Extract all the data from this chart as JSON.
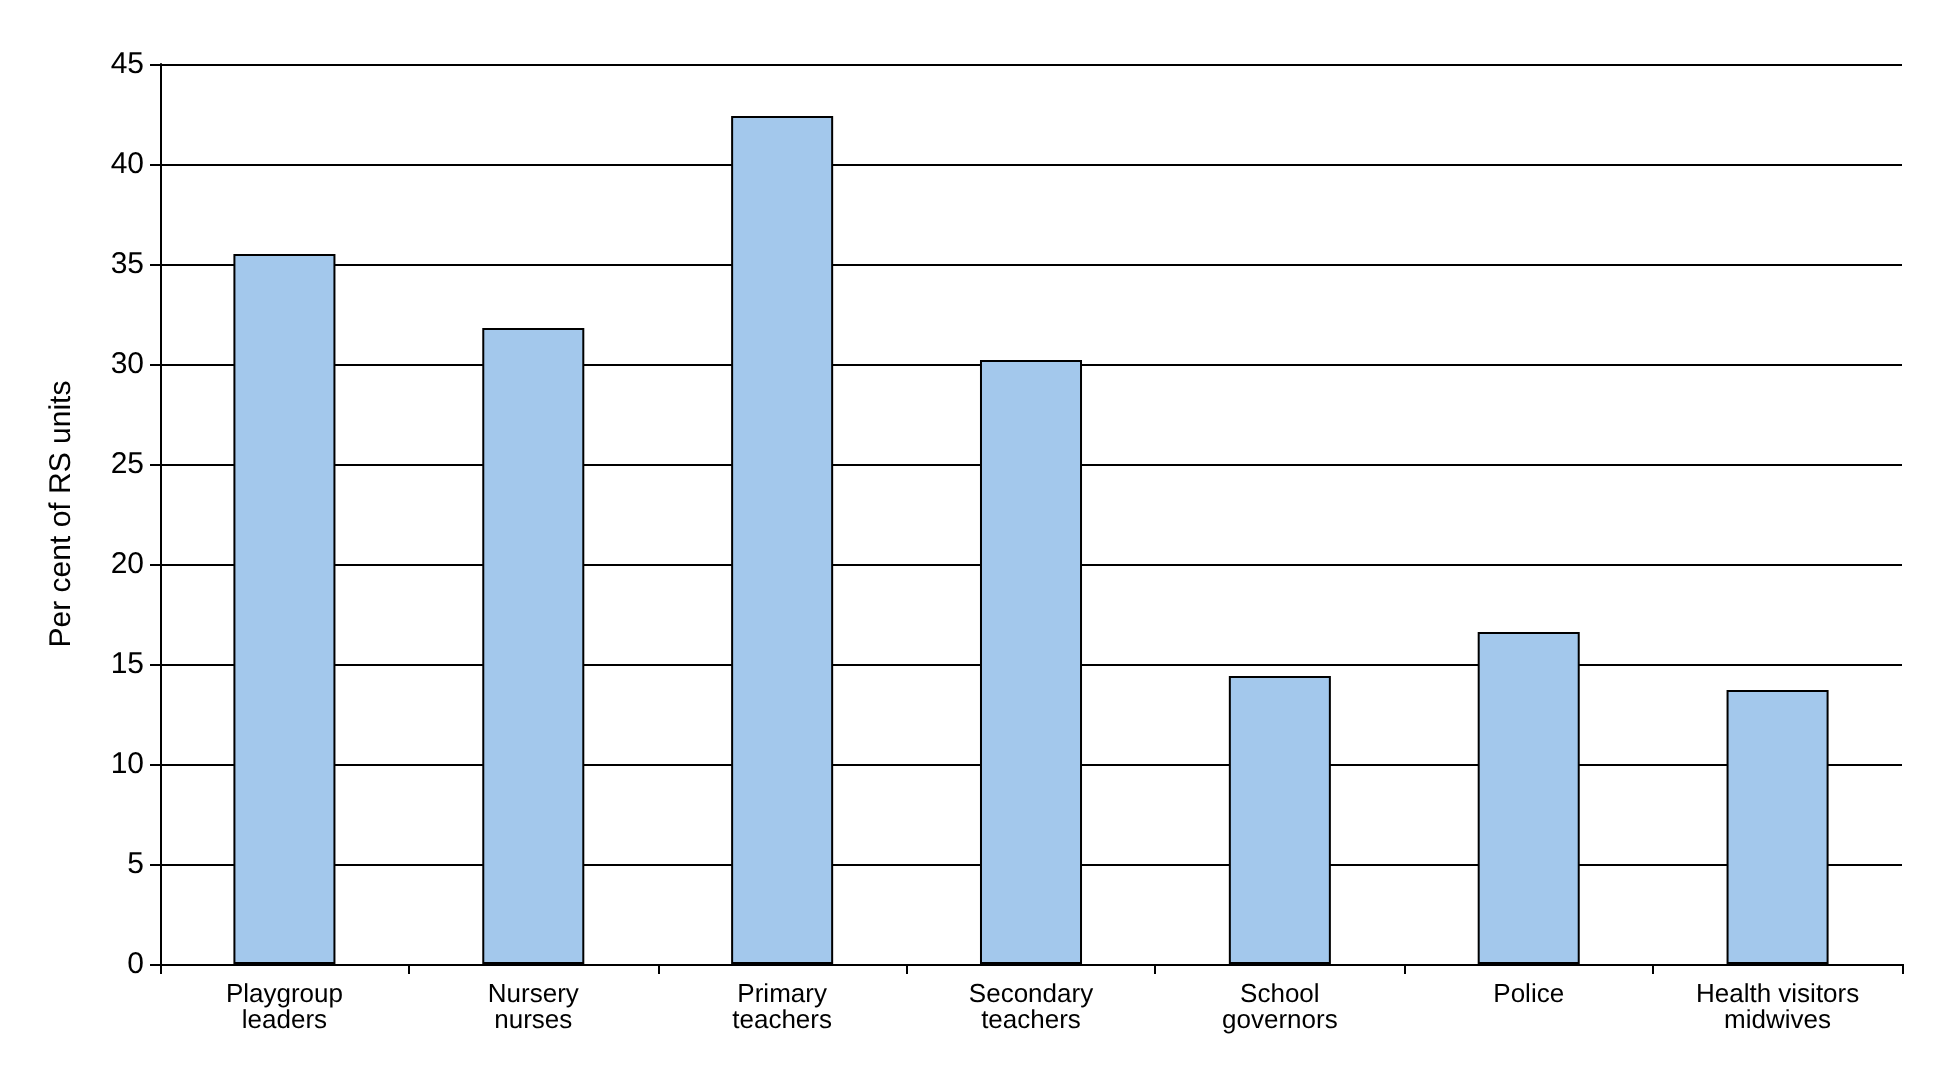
{
  "chart_data": {
    "type": "bar",
    "ylabel": "Per cent of RS units",
    "categories": [
      "Playgroup\nleaders",
      "Nursery\nnurses",
      "Primary\nteachers",
      "Secondary\nteachers",
      "School\ngovernors",
      "Police",
      "Health visitors\nmidwives"
    ],
    "values": [
      35.5,
      31.8,
      42.4,
      30.2,
      14.4,
      16.6,
      13.7
    ],
    "color": "#a3c8ec",
    "ylim": [
      0,
      45
    ],
    "yticks": [
      0,
      5,
      10,
      15,
      20,
      25,
      30,
      35,
      40,
      45
    ],
    "grid": "y"
  }
}
